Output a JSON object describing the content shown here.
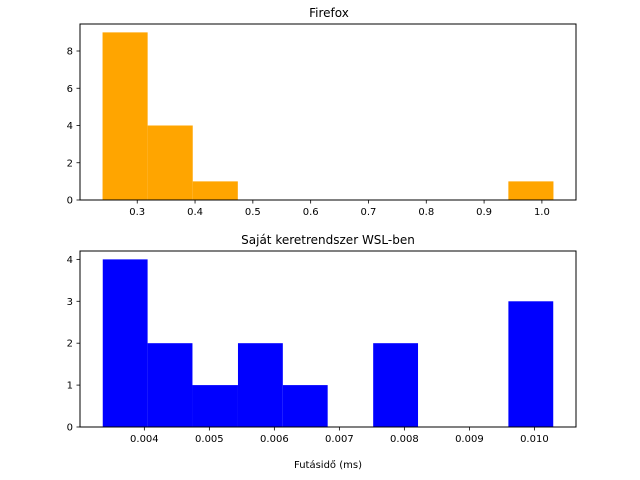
{
  "chart_data": [
    {
      "type": "bar",
      "subtype": "histogram",
      "title": "Firefox",
      "xlabel": "",
      "ylabel": "",
      "color": "#ffa500",
      "bins": [
        {
          "start": 0.24,
          "end": 0.318,
          "count": 9
        },
        {
          "start": 0.318,
          "end": 0.396,
          "count": 4
        },
        {
          "start": 0.396,
          "end": 0.474,
          "count": 1
        },
        {
          "start": 0.474,
          "end": 0.552,
          "count": 0
        },
        {
          "start": 0.552,
          "end": 0.63,
          "count": 0
        },
        {
          "start": 0.63,
          "end": 0.708,
          "count": 0
        },
        {
          "start": 0.708,
          "end": 0.786,
          "count": 0
        },
        {
          "start": 0.786,
          "end": 0.864,
          "count": 0
        },
        {
          "start": 0.864,
          "end": 0.942,
          "count": 0
        },
        {
          "start": 0.942,
          "end": 1.02,
          "count": 1
        }
      ],
      "xlim": [
        0.201,
        1.059
      ],
      "ylim": [
        0,
        9.45
      ],
      "xticks": [
        {
          "value": 0.3,
          "label": "0.3"
        },
        {
          "value": 0.4,
          "label": "0.4"
        },
        {
          "value": 0.5,
          "label": "0.5"
        },
        {
          "value": 0.6,
          "label": "0.6"
        },
        {
          "value": 0.7,
          "label": "0.7"
        },
        {
          "value": 0.8,
          "label": "0.8"
        },
        {
          "value": 0.9,
          "label": "0.9"
        },
        {
          "value": 1.0,
          "label": "1.0"
        }
      ],
      "yticks": [
        {
          "value": 0,
          "label": "0"
        },
        {
          "value": 2,
          "label": "2"
        },
        {
          "value": 4,
          "label": "4"
        },
        {
          "value": 6,
          "label": "6"
        },
        {
          "value": 8,
          "label": "8"
        }
      ],
      "grid": false,
      "legend": "none"
    },
    {
      "type": "bar",
      "subtype": "histogram",
      "title": "Saját keretrendszer WSL-ben",
      "xlabel": "Futásidő (ms)",
      "ylabel": "",
      "color": "#0000ff",
      "bins": [
        {
          "start": 0.00336,
          "end": 0.00405,
          "count": 4
        },
        {
          "start": 0.00405,
          "end": 0.00474,
          "count": 2
        },
        {
          "start": 0.00474,
          "end": 0.00544,
          "count": 1
        },
        {
          "start": 0.00544,
          "end": 0.00613,
          "count": 2
        },
        {
          "start": 0.00613,
          "end": 0.00682,
          "count": 1
        },
        {
          "start": 0.00682,
          "end": 0.00752,
          "count": 0
        },
        {
          "start": 0.00752,
          "end": 0.00821,
          "count": 2
        },
        {
          "start": 0.00821,
          "end": 0.0089,
          "count": 0
        },
        {
          "start": 0.0089,
          "end": 0.0096,
          "count": 0
        },
        {
          "start": 0.0096,
          "end": 0.01029,
          "count": 3
        }
      ],
      "xlim": [
        0.00301,
        0.01064
      ],
      "ylim": [
        0,
        4.2
      ],
      "xticks": [
        {
          "value": 0.004,
          "label": "0.004"
        },
        {
          "value": 0.005,
          "label": "0.005"
        },
        {
          "value": 0.006,
          "label": "0.006"
        },
        {
          "value": 0.007,
          "label": "0.007"
        },
        {
          "value": 0.008,
          "label": "0.008"
        },
        {
          "value": 0.009,
          "label": "0.009"
        },
        {
          "value": 0.01,
          "label": "0.010"
        }
      ],
      "yticks": [
        {
          "value": 0,
          "label": "0"
        },
        {
          "value": 1,
          "label": "1"
        },
        {
          "value": 2,
          "label": "2"
        },
        {
          "value": 3,
          "label": "3"
        },
        {
          "value": 4,
          "label": "4"
        }
      ],
      "grid": false,
      "legend": "none"
    }
  ]
}
